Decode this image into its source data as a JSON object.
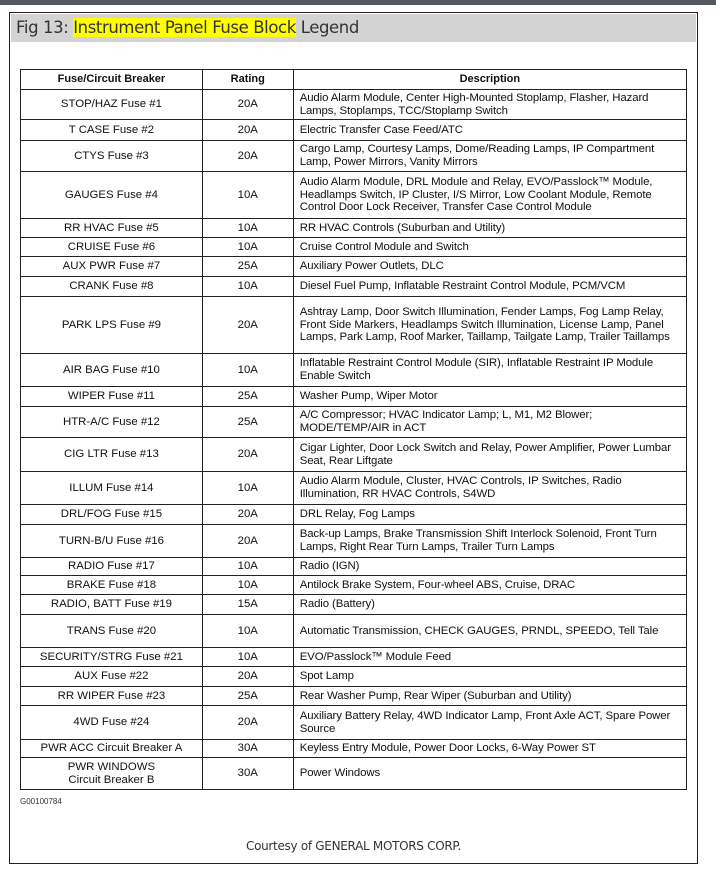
{
  "title": {
    "prefix": "Fig 13: ",
    "highlight": "Instrument Panel Fuse Block",
    "suffix": " Legend",
    "highlight_color": "#ffff00"
  },
  "table": {
    "headers": [
      "Fuse/Circuit Breaker",
      "Rating",
      "Description"
    ],
    "rows": [
      {
        "name": "STOP/HAZ Fuse #1",
        "rating": "20A",
        "description": "Audio Alarm Module, Center High-Mounted Stoplamp, Flasher, Hazard Lamps, Stoplamps, TCC/Stoplamp Switch"
      },
      {
        "name": "T CASE Fuse #2",
        "rating": "20A",
        "description": "Electric Transfer Case Feed/ATC"
      },
      {
        "name": "CTYS Fuse #3",
        "rating": "20A",
        "description": "Cargo Lamp, Courtesy Lamps, Dome/Reading Lamps, IP Compartment Lamp, Power Mirrors, Vanity Mirrors"
      },
      {
        "name": "GAUGES Fuse #4",
        "rating": "10A",
        "description": "Audio Alarm Module, DRL Module and Relay, EVO/Passlock™ Module, Headlamps Switch, IP Cluster, I/S Mirror, Low Coolant Module, Remote Control Door Lock Receiver, Transfer Case Control Module"
      },
      {
        "name": "RR HVAC Fuse #5",
        "rating": "10A",
        "description": "RR HVAC Controls (Suburban and Utility)"
      },
      {
        "name": "CRUISE Fuse #6",
        "rating": "10A",
        "description": "Cruise Control Module and Switch"
      },
      {
        "name": "AUX PWR Fuse #7",
        "rating": "25A",
        "description": "Auxiliary Power Outlets, DLC"
      },
      {
        "name": "CRANK Fuse #8",
        "rating": "10A",
        "description": "Diesel Fuel Pump, Inflatable Restraint Control Module, PCM/VCM"
      },
      {
        "name": "PARK LPS Fuse #9",
        "rating": "20A",
        "description": "Ashtray Lamp, Door Switch Illumination, Fender Lamps, Fog Lamp Relay, Front Side Markers, Headlamps Switch Illumination, License Lamp, Panel Lamps, Park Lamp, Roof Marker, Taillamp, Tailgate Lamp, Trailer Taillamps"
      },
      {
        "name": "AIR BAG Fuse #10",
        "rating": "10A",
        "description": "Inflatable Restraint Control Module (SIR), Inflatable Restraint IP Module Enable Switch"
      },
      {
        "name": "WIPER Fuse #11",
        "rating": "25A",
        "description": "Washer Pump, Wiper Motor"
      },
      {
        "name": "HTR-A/C Fuse #12",
        "rating": "25A",
        "description": "A/C Compressor; HVAC Indicator Lamp; L, M1, M2 Blower; MODE/TEMP/AIR in ACT"
      },
      {
        "name": "CIG LTR Fuse #13",
        "rating": "20A",
        "description": "Cigar Lighter, Door Lock Switch and Relay, Power Amplifier, Power Lumbar Seat, Rear Liftgate"
      },
      {
        "name": "ILLUM Fuse #14",
        "rating": "10A",
        "description": "Audio Alarm Module, Cluster, HVAC Controls, IP Switches, Radio Illumination, RR HVAC Controls, S4WD"
      },
      {
        "name": "DRL/FOG Fuse #15",
        "rating": "20A",
        "description": "DRL Relay, Fog Lamps"
      },
      {
        "name": "TURN-B/U Fuse #16",
        "rating": "20A",
        "description": "Back-up Lamps, Brake Transmission Shift Interlock Solenoid, Front Turn Lamps, Right Rear Turn Lamps, Trailer Turn Lamps"
      },
      {
        "name": "RADIO Fuse #17",
        "rating": "10A",
        "description": "Radio (IGN)"
      },
      {
        "name": "BRAKE Fuse #18",
        "rating": "10A",
        "description": "Antilock Brake System, Four-wheel ABS, Cruise, DRAC"
      },
      {
        "name": "RADIO, BATT Fuse #19",
        "rating": "15A",
        "description": "Radio (Battery)"
      },
      {
        "name": "TRANS Fuse #20",
        "rating": "10A",
        "description": "Automatic Transmission, CHECK GAUGES, PRNDL, SPEEDO, Tell Tale"
      },
      {
        "name": "SECURITY/STRG Fuse #21",
        "rating": "10A",
        "description": "EVO/Passlock™ Module Feed"
      },
      {
        "name": "AUX Fuse #22",
        "rating": "20A",
        "description": "Spot Lamp"
      },
      {
        "name": "RR WIPER Fuse #23",
        "rating": "25A",
        "description": "Rear Washer Pump, Rear Wiper (Suburban and Utility)"
      },
      {
        "name": "4WD Fuse #24",
        "rating": "20A",
        "description": "Auxiliary Battery Relay, 4WD Indicator Lamp, Front Axle ACT, Spare Power Source"
      },
      {
        "name": "PWR ACC Circuit Breaker A",
        "rating": "30A",
        "description": "Keyless Entry Module, Power Door Locks, 6-Way Power ST"
      },
      {
        "name": "PWR WINDOWS Circuit Breaker B",
        "rating": "30A",
        "description": "Power Windows"
      }
    ]
  },
  "figure_code": "G00100784",
  "courtesy": "Courtesy of GENERAL MOTORS CORP."
}
